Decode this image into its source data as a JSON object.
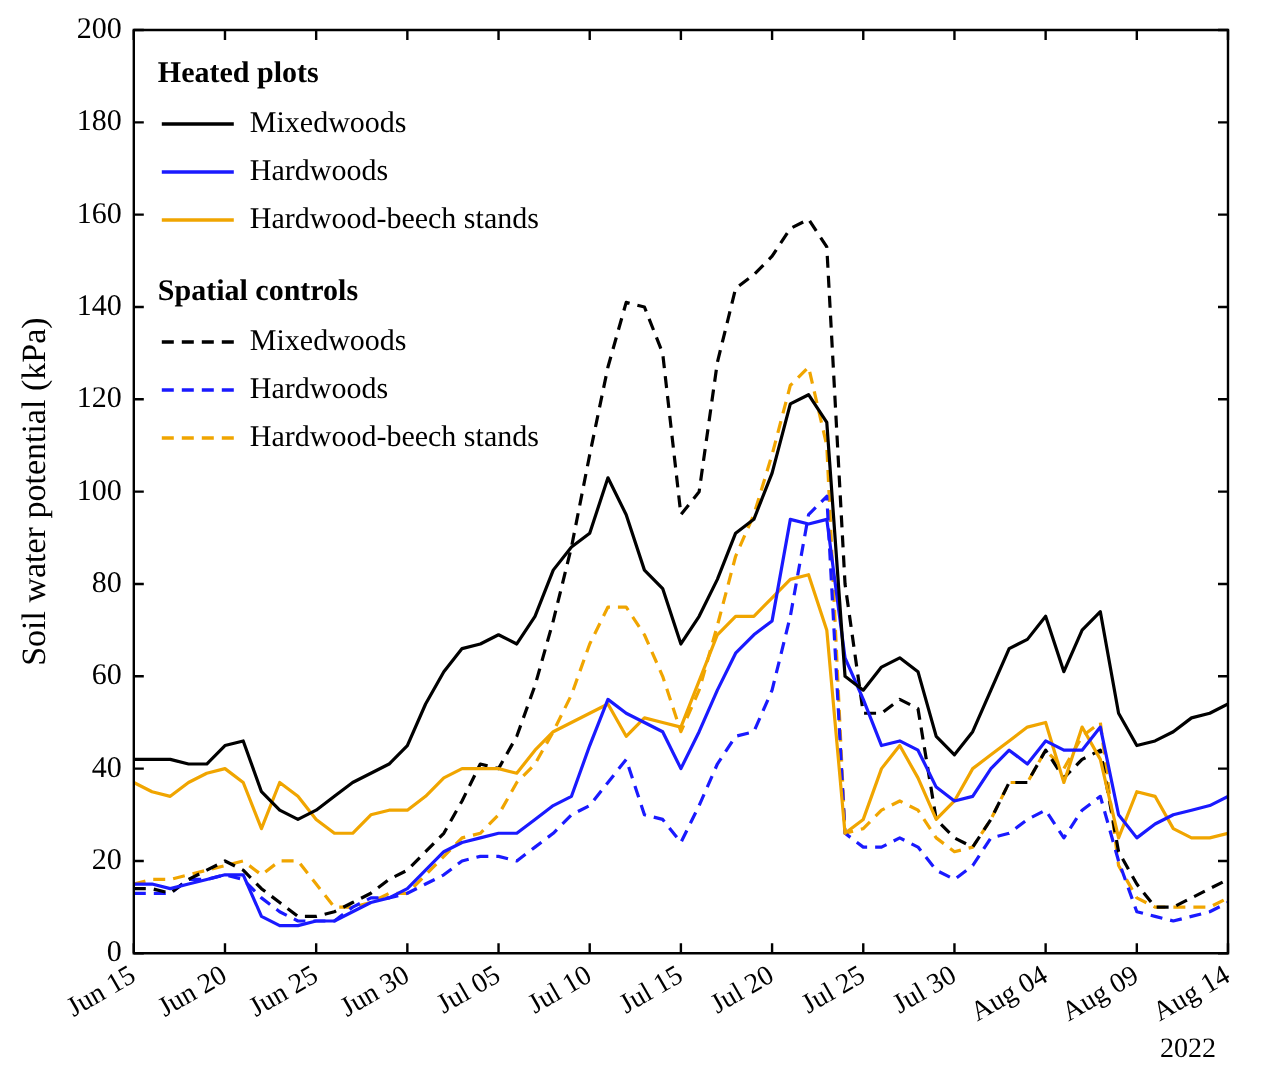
{
  "chart_data": {
    "type": "line",
    "ylabel": "Soil water potential (kPa)",
    "x": [
      "2022-06-15",
      "2022-06-16",
      "2022-06-17",
      "2022-06-18",
      "2022-06-19",
      "2022-06-20",
      "2022-06-21",
      "2022-06-22",
      "2022-06-23",
      "2022-06-24",
      "2022-06-25",
      "2022-06-26",
      "2022-06-27",
      "2022-06-28",
      "2022-06-29",
      "2022-06-30",
      "2022-07-01",
      "2022-07-02",
      "2022-07-03",
      "2022-07-04",
      "2022-07-05",
      "2022-07-06",
      "2022-07-07",
      "2022-07-08",
      "2022-07-09",
      "2022-07-10",
      "2022-07-11",
      "2022-07-12",
      "2022-07-13",
      "2022-07-14",
      "2022-07-15",
      "2022-07-16",
      "2022-07-17",
      "2022-07-18",
      "2022-07-19",
      "2022-07-20",
      "2022-07-21",
      "2022-07-22",
      "2022-07-23",
      "2022-07-24",
      "2022-07-25",
      "2022-07-26",
      "2022-07-27",
      "2022-07-28",
      "2022-07-29",
      "2022-07-30",
      "2022-07-31",
      "2022-08-01",
      "2022-08-02",
      "2022-08-03",
      "2022-08-04",
      "2022-08-05",
      "2022-08-06",
      "2022-08-07",
      "2022-08-08",
      "2022-08-09",
      "2022-08-10",
      "2022-08-11",
      "2022-08-12",
      "2022-08-13",
      "2022-08-14"
    ],
    "series": [
      {
        "name": "Mixedwoods",
        "color": "#000000",
        "line_style": "solid",
        "values": [
          42,
          42,
          42,
          41,
          41,
          45,
          46,
          35,
          31,
          29,
          31,
          34,
          37,
          39,
          41,
          45,
          54,
          61,
          66,
          67,
          69,
          67,
          73,
          83,
          88,
          91,
          103,
          95,
          83,
          79,
          67,
          73,
          81,
          91,
          94,
          104,
          119,
          121,
          115,
          60,
          57,
          62,
          64,
          61,
          47,
          43,
          48,
          57,
          66,
          68,
          73,
          61,
          70,
          74,
          52,
          45,
          46,
          48,
          51,
          52,
          54
        ]
      },
      {
        "name": "Hardwoods",
        "color": "#1a1aff",
        "line_style": "solid",
        "values": [
          15,
          15,
          14,
          15,
          16,
          17,
          17,
          8,
          6,
          6,
          7,
          7,
          9,
          11,
          12,
          14,
          18,
          22,
          24,
          25,
          26,
          26,
          29,
          32,
          34,
          45,
          55,
          52,
          50,
          48,
          40,
          48,
          57,
          65,
          69,
          72,
          94,
          93,
          94,
          64,
          55,
          45,
          46,
          44,
          36,
          33,
          34,
          40,
          44,
          41,
          46,
          44,
          44,
          49,
          30,
          25,
          28,
          30,
          31,
          32,
          34
        ]
      },
      {
        "name": "Hardwood-beech stands",
        "color": "#f0a500",
        "line_style": "solid",
        "values": [
          37,
          35,
          34,
          37,
          39,
          40,
          37,
          27,
          37,
          34,
          29,
          26,
          26,
          30,
          31,
          31,
          34,
          38,
          40,
          40,
          40,
          39,
          44,
          48,
          50,
          52,
          54,
          47,
          51,
          50,
          49,
          59,
          69,
          73,
          73,
          77,
          81,
          82,
          70,
          26,
          29,
          40,
          45,
          38,
          29,
          33,
          40,
          43,
          46,
          49,
          50,
          37,
          49,
          42,
          25,
          35,
          34,
          27,
          25,
          25,
          26
        ]
      },
      {
        "name": "Mixedwoods",
        "color": "#000000",
        "line_style": "dashed",
        "values": [
          14,
          14,
          13,
          16,
          18,
          20,
          18,
          14,
          11,
          8,
          8,
          9,
          11,
          13,
          16,
          18,
          22,
          26,
          33,
          41,
          40,
          47,
          58,
          72,
          88,
          108,
          127,
          141,
          140,
          130,
          95,
          100,
          128,
          144,
          147,
          151,
          157,
          159,
          153,
          80,
          52,
          52,
          55,
          53,
          29,
          25,
          23,
          29,
          37,
          37,
          44,
          38,
          42,
          44,
          22,
          15,
          10,
          10,
          12,
          14,
          16
        ]
      },
      {
        "name": "Hardwoods",
        "color": "#1a1aff",
        "line_style": "dashed",
        "values": [
          13,
          13,
          13,
          16,
          16,
          17,
          16,
          12,
          9,
          7,
          7,
          7,
          10,
          12,
          12,
          13,
          15,
          17,
          20,
          21,
          21,
          20,
          23,
          26,
          30,
          32,
          37,
          42,
          30,
          29,
          24,
          32,
          41,
          47,
          48,
          57,
          73,
          95,
          99,
          26,
          23,
          23,
          25,
          23,
          18,
          16,
          19,
          25,
          26,
          29,
          31,
          25,
          31,
          34,
          20,
          9,
          8,
          7,
          8,
          9,
          11
        ]
      },
      {
        "name": "Hardwood-beech stands",
        "color": "#f0a500",
        "line_style": "dashed",
        "values": [
          15,
          16,
          16,
          17,
          18,
          19,
          20,
          17,
          20,
          20,
          15,
          10,
          10,
          11,
          13,
          13,
          17,
          21,
          25,
          26,
          30,
          37,
          41,
          48,
          56,
          67,
          75,
          75,
          69,
          60,
          48,
          57,
          71,
          86,
          95,
          108,
          123,
          127,
          110,
          26,
          27,
          31,
          33,
          31,
          25,
          22,
          23,
          29,
          37,
          37,
          44,
          40,
          47,
          50,
          19,
          12,
          10,
          10,
          10,
          10,
          12
        ]
      }
    ],
    "xlim": [
      "2022-06-15",
      "2022-08-14"
    ],
    "xticks": [
      {
        "value": "2022-06-15",
        "label": "Jun 15"
      },
      {
        "value": "2022-06-20",
        "label": "Jun 20"
      },
      {
        "value": "2022-06-25",
        "label": "Jun 25"
      },
      {
        "value": "2022-06-30",
        "label": "Jun 30"
      },
      {
        "value": "2022-07-05",
        "label": "Jul 05"
      },
      {
        "value": "2022-07-10",
        "label": "Jul 10"
      },
      {
        "value": "2022-07-15",
        "label": "Jul 15"
      },
      {
        "value": "2022-07-20",
        "label": "Jul 20"
      },
      {
        "value": "2022-07-25",
        "label": "Jul 25"
      },
      {
        "value": "2022-07-30",
        "label": "Jul 30"
      },
      {
        "value": "2022-08-04",
        "label": "Aug 04"
      },
      {
        "value": "2022-08-09",
        "label": "Aug 09"
      },
      {
        "value": "2022-08-14",
        "label": "Aug 14"
      }
    ],
    "ylim": [
      0,
      200
    ],
    "yticks": [
      0,
      20,
      40,
      60,
      80,
      100,
      120,
      140,
      160,
      180,
      200
    ],
    "grid": false,
    "legend": "top left",
    "marker": "none",
    "annotations": [
      "Heated plots",
      "Spatial controls",
      "2022"
    ]
  }
}
